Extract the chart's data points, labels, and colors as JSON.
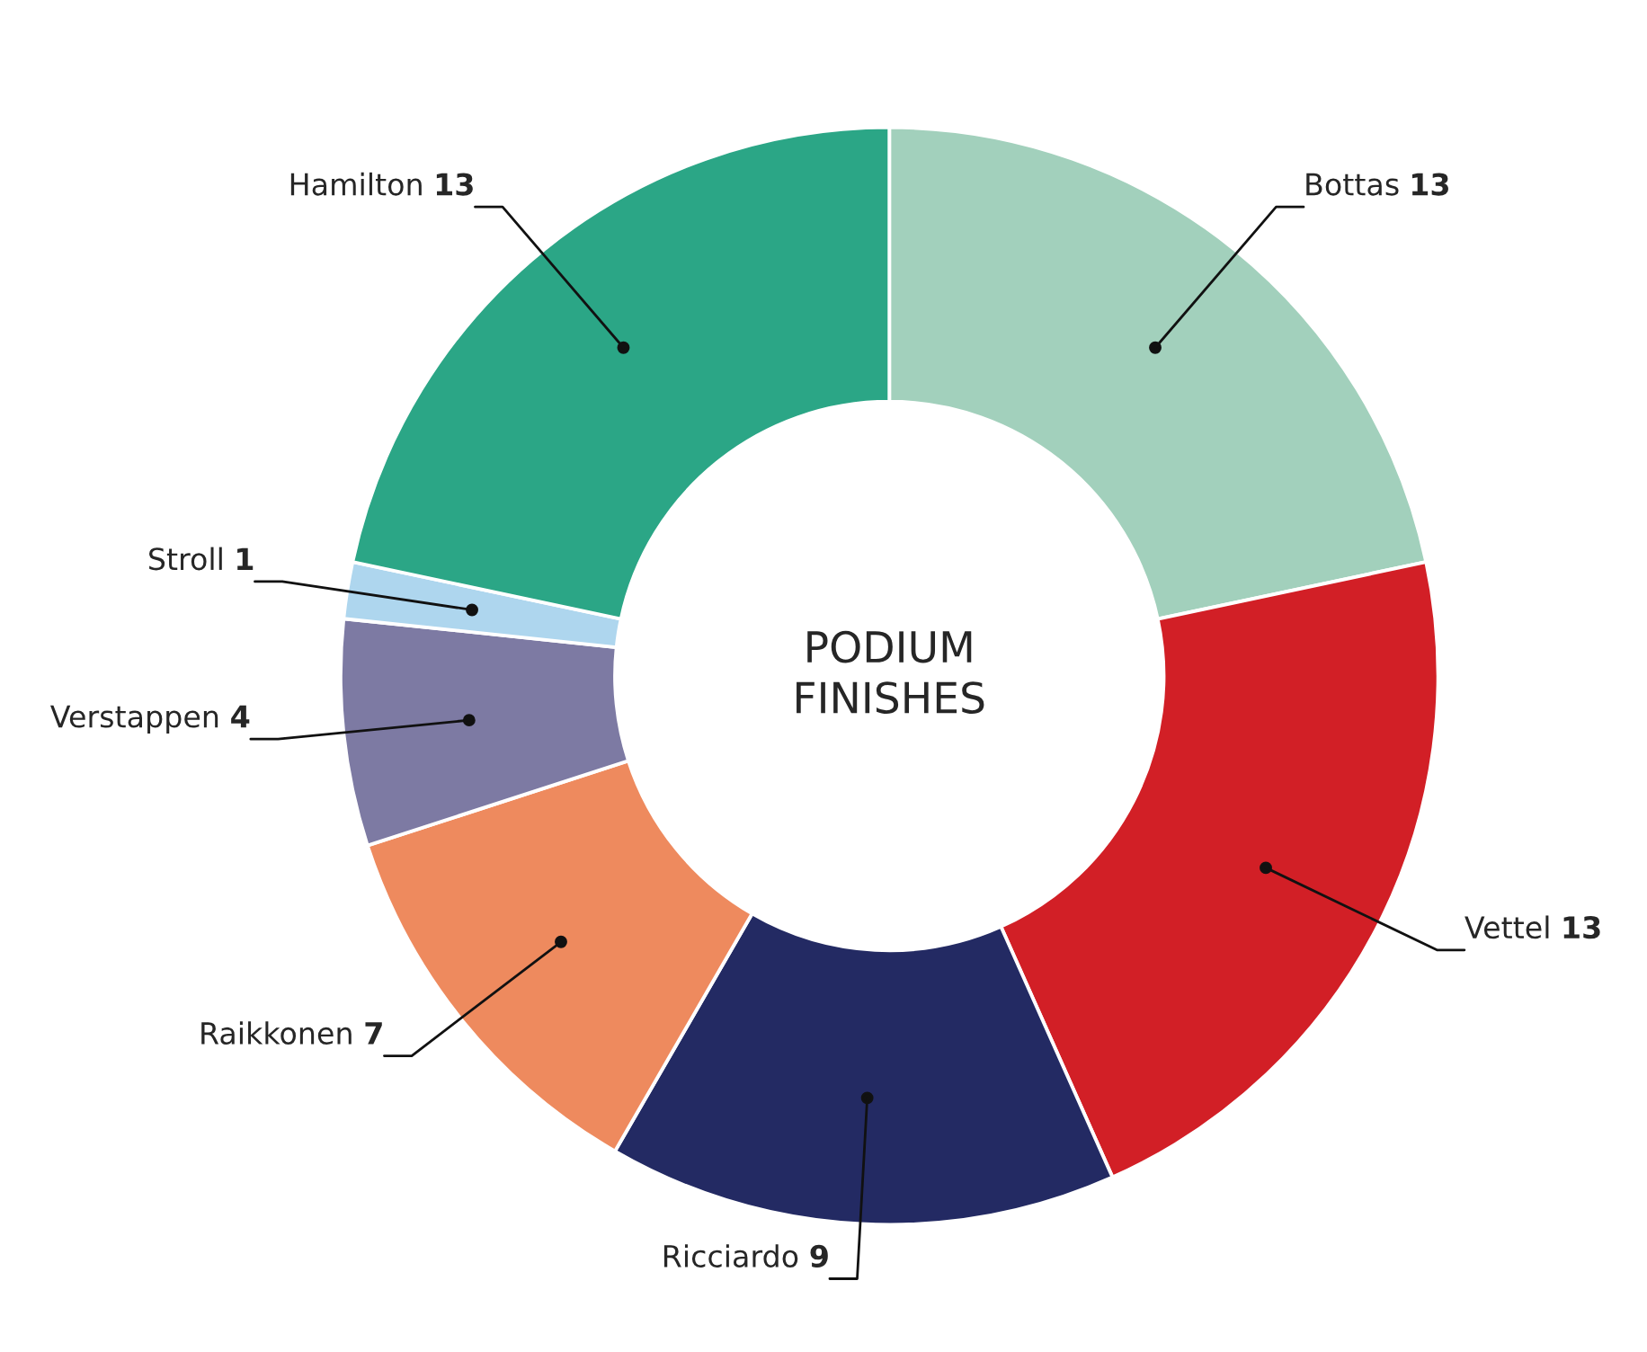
{
  "chart_data": {
    "type": "donut",
    "title": "PODIUM\nFINISHES",
    "categories": [
      "Bottas",
      "Vettel",
      "Ricciardo",
      "Raikkonen",
      "Verstappen",
      "Stroll",
      "Hamilton"
    ],
    "values": [
      13,
      13,
      9,
      7,
      4,
      1,
      13
    ],
    "colors": [
      "#a2d0bc",
      "#d21f26",
      "#232a63",
      "#ee8a5e",
      "#7d7aa3",
      "#aed6ee",
      "#2ba686"
    ],
    "data_labels": true
  }
}
